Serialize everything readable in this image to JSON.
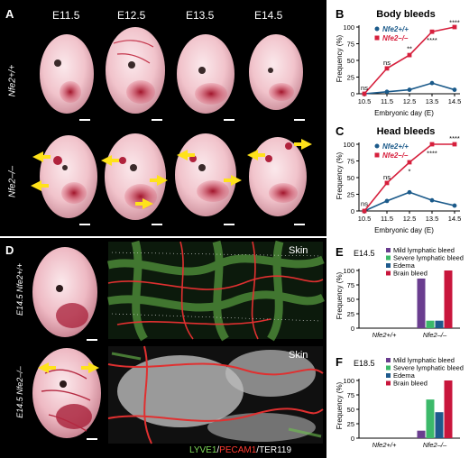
{
  "panelA": {
    "label": "A",
    "stages": [
      "E11.5",
      "E12.5",
      "E13.5",
      "E14.5"
    ],
    "rows": [
      "Nfe2+/+",
      "Nfe2–/–"
    ]
  },
  "panelD": {
    "label": "D",
    "rows": [
      "E14.5 Nfe2+/+",
      "E14.5 Nfe2–/–"
    ],
    "skin_label": "Skin",
    "stain": {
      "lyve1": "LYVE1",
      "sep1": "/",
      "pecam1": "PECAM1",
      "sep2": "/",
      "ter119": "TER119"
    },
    "colors": {
      "lyve1": "#7ed957",
      "pecam1": "#ff3b30",
      "ter119": "#ffffff"
    }
  },
  "colors": {
    "wt": "#1b5a8a",
    "ko": "#d61f3c",
    "lymph_mild": "#6a3d8f",
    "lymph_severe": "#3cb96a",
    "edema": "#1e5a8c",
    "brain": "#c8163c"
  },
  "chart_data": [
    {
      "panel": "B",
      "type": "line",
      "title": "Body bleeds",
      "xlabel": "Embryonic day (E)",
      "ylabel": "Frequency (%)",
      "x": [
        "10.5",
        "11.5",
        "12.5",
        "13.5",
        "14.5"
      ],
      "ylim": [
        0,
        100
      ],
      "yticks": [
        "0",
        "25",
        "50",
        "75",
        "100"
      ],
      "series": [
        {
          "name": "Nfe2+/+",
          "values": [
            0,
            3,
            6,
            16,
            6
          ]
        },
        {
          "name": "Nfe2–/–",
          "values": [
            0,
            38,
            58,
            93,
            100
          ]
        }
      ],
      "annotations": [
        {
          "x": "10.5",
          "text": "ns",
          "y": 8
        },
        {
          "x": "11.5",
          "text": "ns",
          "y": 46
        },
        {
          "x": "12.5",
          "text": "**",
          "y": 67
        },
        {
          "x": "13.5",
          "text": "****",
          "y": 80
        },
        {
          "x": "14.5",
          "text": "****",
          "y": 106
        }
      ]
    },
    {
      "panel": "C",
      "type": "line",
      "title": "Head bleeds",
      "xlabel": "Embryonic day (E)",
      "ylabel": "Frequency (%)",
      "x": [
        "10.5",
        "11.5",
        "12.5",
        "13.5",
        "14.5"
      ],
      "ylim": [
        0,
        100
      ],
      "yticks": [
        "0",
        "25",
        "50",
        "75",
        "100"
      ],
      "series": [
        {
          "name": "Nfe2+/+",
          "values": [
            0,
            15,
            28,
            16,
            8
          ]
        },
        {
          "name": "Nfe2–/–",
          "values": [
            0,
            42,
            73,
            100,
            100
          ]
        }
      ],
      "annotations": [
        {
          "x": "10.5",
          "text": "ns",
          "y": 10
        },
        {
          "x": "11.5",
          "text": "ns",
          "y": 50
        },
        {
          "x": "12.5",
          "text": "*",
          "y": 59
        },
        {
          "x": "13.5",
          "text": "****",
          "y": 86
        },
        {
          "x": "14.5",
          "text": "****",
          "y": 108
        }
      ]
    },
    {
      "panel": "E",
      "type": "bar",
      "title": "E14.5",
      "ylabel": "Frequency (%)",
      "categories": [
        "Nfe2+/+",
        "Nfe2–/–"
      ],
      "ylim": [
        0,
        100
      ],
      "yticks": [
        "0",
        "25",
        "50",
        "75",
        "100"
      ],
      "series": [
        {
          "name": "Mild lymphatic bleed",
          "values": [
            0,
            86
          ]
        },
        {
          "name": "Severe lymphatic bleed",
          "values": [
            0,
            13
          ]
        },
        {
          "name": "Edema",
          "values": [
            0,
            13
          ]
        },
        {
          "name": "Brain bleed",
          "values": [
            0,
            100
          ]
        }
      ]
    },
    {
      "panel": "F",
      "type": "bar",
      "title": "E18.5",
      "ylabel": "Frequency (%)",
      "categories": [
        "Nfe2+/+",
        "Nfe2–/–"
      ],
      "ylim": [
        0,
        100
      ],
      "yticks": [
        "0",
        "25",
        "50",
        "75",
        "100"
      ],
      "series": [
        {
          "name": "Mild lymphatic bleed",
          "values": [
            0,
            13
          ]
        },
        {
          "name": "Severe lymphatic bleed",
          "values": [
            0,
            67
          ]
        },
        {
          "name": "Edema",
          "values": [
            0,
            45
          ]
        },
        {
          "name": "Brain bleed",
          "values": [
            0,
            100
          ]
        }
      ]
    }
  ]
}
